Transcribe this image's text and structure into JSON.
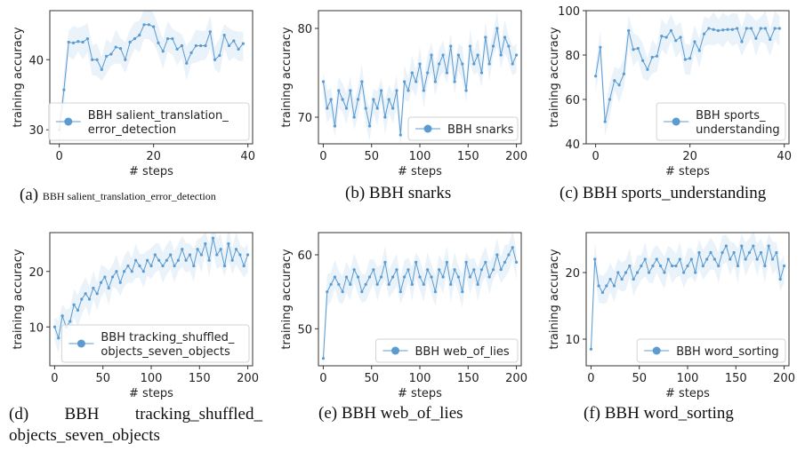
{
  "colors": {
    "line": "#5b9bd0",
    "band": "#dce9f7",
    "axis": "#333333"
  },
  "captions": [
    {
      "label": "(a)",
      "text": "BBH salient_translation_error_detection"
    },
    {
      "label": "(b)",
      "text": "BBH snarks"
    },
    {
      "label": "(c)",
      "text": "BBH sports_understanding"
    },
    {
      "label": "(d)",
      "text": "BBH tracking_shuffled_ objects_seven_objects"
    },
    {
      "label": "(e)",
      "text": "BBH web_of_lies"
    },
    {
      "label": "(f)",
      "text": "BBH word_sorting"
    }
  ],
  "chart_data": [
    {
      "type": "line",
      "xlabel": "# steps",
      "ylabel": "training accuracy",
      "legend": [
        "BBH salient_translation_",
        "error_detection"
      ],
      "legend_placement": "lower-right",
      "xlim": [
        -2,
        41
      ],
      "ylim": [
        28,
        47
      ],
      "xticks": [
        0,
        20,
        40
      ],
      "yticks": [
        30,
        40
      ],
      "x_step": 1,
      "values": [
        30,
        35.7,
        42.5,
        42.4,
        42.6,
        42.5,
        43,
        40,
        40,
        38.6,
        40.5,
        40.8,
        41.8,
        41.6,
        40,
        42.5,
        43,
        43.5,
        45,
        45,
        44.7,
        42.4,
        41.2,
        43,
        43,
        41.5,
        42,
        39.5,
        41,
        42,
        42,
        42,
        44,
        40,
        40.6,
        43.5,
        42,
        42.7,
        41.5,
        42.3
      ]
    },
    {
      "type": "line",
      "xlabel": "# steps",
      "ylabel": "",
      "legend": [
        "BBH snarks"
      ],
      "legend_placement": "lower-right",
      "xlim": [
        -5,
        205
      ],
      "ylim": [
        67,
        82
      ],
      "xticks": [
        0,
        50,
        100,
        150,
        200
      ],
      "yticks": [
        70,
        80
      ],
      "x_step": 4,
      "values": [
        74,
        71,
        72,
        69,
        73,
        72,
        71,
        73,
        70,
        72,
        74,
        71,
        69,
        72,
        71,
        73,
        70,
        72,
        71,
        73,
        68,
        74,
        73,
        75,
        74,
        76,
        73,
        75,
        77,
        74,
        76,
        77,
        75,
        78,
        74,
        77,
        76,
        73,
        78,
        76,
        77,
        75,
        79,
        76,
        78,
        80,
        77,
        79,
        78,
        76,
        77
      ]
    },
    {
      "type": "line",
      "xlabel": "# steps",
      "ylabel": "training accuracy",
      "legend": [
        "BBH sports_",
        "understanding"
      ],
      "legend_placement": "lower-right",
      "xlim": [
        -2,
        41
      ],
      "ylim": [
        40,
        100
      ],
      "xticks": [
        0,
        20,
        40
      ],
      "yticks": [
        40,
        60,
        80,
        100
      ],
      "x_step": 1,
      "values": [
        70.5,
        83.5,
        50,
        60,
        68.5,
        66.5,
        71.5,
        91,
        82.5,
        83,
        77.5,
        73.5,
        79,
        79.5,
        88.5,
        88,
        91,
        86.5,
        88,
        78,
        78.5,
        86,
        82,
        89.5,
        92,
        91.5,
        91,
        91.3,
        91.5,
        91.5,
        92,
        86,
        92,
        92,
        87.5,
        92,
        92,
        87,
        92,
        92
      ]
    },
    {
      "type": "line",
      "xlabel": "# steps",
      "ylabel": "training accuracy",
      "legend": [
        "BBH tracking_shuffled_",
        "objects_seven_objects"
      ],
      "legend_placement": "lower-right",
      "xlim": [
        -5,
        205
      ],
      "ylim": [
        3,
        27
      ],
      "xticks": [
        0,
        50,
        100,
        150,
        200
      ],
      "yticks": [
        10,
        20
      ],
      "x_step": 4,
      "values": [
        10,
        8,
        12,
        10,
        11,
        14,
        13,
        15,
        16,
        15,
        17,
        16,
        18,
        19,
        17,
        19,
        20,
        18,
        20,
        21,
        20,
        22,
        21,
        20,
        22,
        21,
        23,
        22,
        21,
        22,
        23,
        21,
        22,
        24,
        22,
        23,
        21,
        24,
        23,
        25,
        22,
        26,
        23,
        24,
        21,
        25,
        22,
        24,
        23,
        21,
        23
      ]
    },
    {
      "type": "line",
      "xlabel": "# steps",
      "ylabel": "training accuracy",
      "legend": [
        "BBH web_of_lies"
      ],
      "legend_placement": "lower-right",
      "xlim": [
        -5,
        205
      ],
      "ylim": [
        45,
        63
      ],
      "xticks": [
        0,
        50,
        100,
        150,
        200
      ],
      "yticks": [
        50,
        60
      ],
      "x_step": 4,
      "values": [
        46,
        55,
        56,
        57,
        56,
        55,
        57,
        56,
        58,
        57,
        55,
        56,
        57,
        58,
        56,
        57,
        59,
        56,
        57,
        58,
        55,
        57,
        58,
        56,
        59,
        57,
        56,
        58,
        57,
        55,
        58,
        57,
        59,
        56,
        58,
        57,
        55,
        59,
        57,
        58,
        56,
        58,
        59,
        57,
        58,
        60,
        58,
        59,
        60,
        61,
        59
      ]
    },
    {
      "type": "line",
      "xlabel": "# steps",
      "ylabel": "training accuracy",
      "legend": [
        "BBH word_sorting"
      ],
      "legend_placement": "lower-right",
      "xlim": [
        -5,
        205
      ],
      "ylim": [
        6,
        26
      ],
      "xticks": [
        0,
        50,
        100,
        150,
        200
      ],
      "yticks": [
        10,
        20
      ],
      "x_step": 4,
      "values": [
        8.5,
        22,
        18,
        17,
        18,
        19,
        18,
        20,
        19,
        20,
        21,
        19,
        20,
        21,
        22,
        20,
        21,
        22,
        21,
        20,
        22,
        21,
        21,
        22,
        20,
        21,
        22,
        20,
        23,
        21,
        22,
        23,
        22,
        21,
        23,
        24,
        22,
        23,
        21,
        24,
        22,
        23,
        24,
        22,
        23,
        21,
        24,
        22,
        23,
        19,
        21
      ]
    }
  ]
}
